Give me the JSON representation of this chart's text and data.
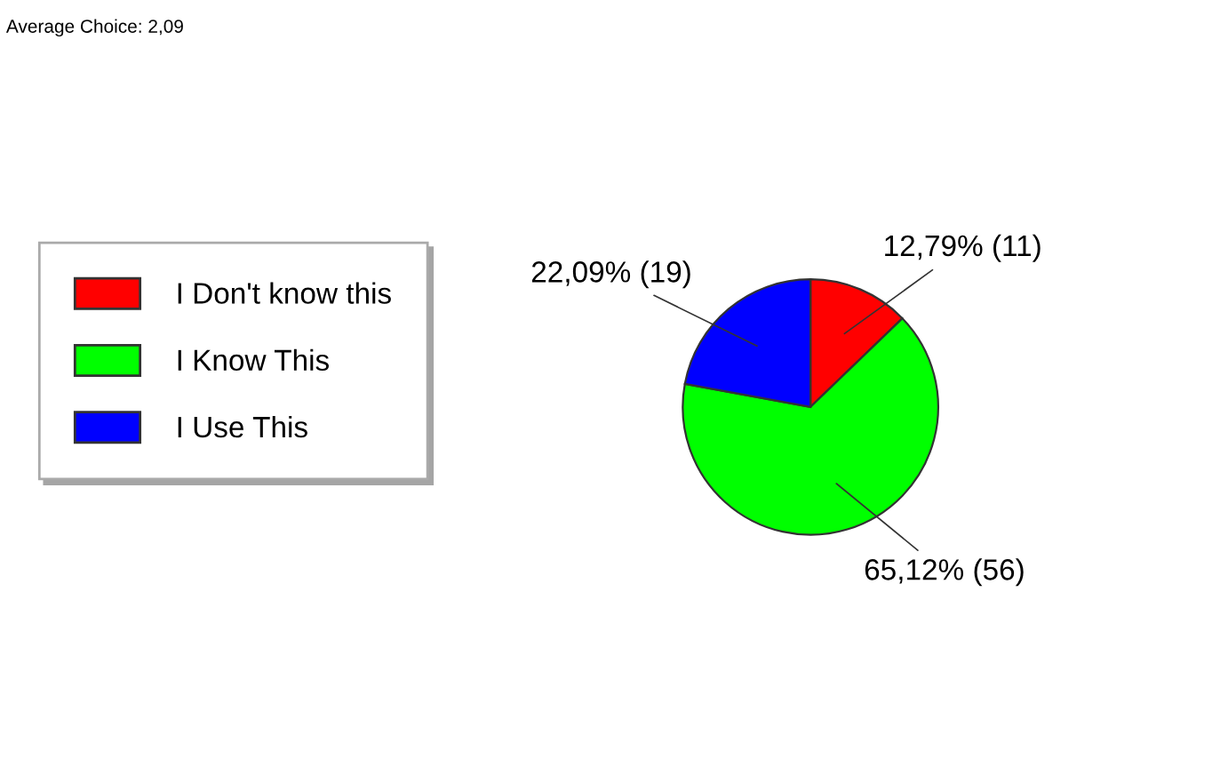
{
  "chart_data": {
    "type": "pie",
    "categories": [
      "I Don't know this",
      "I Know This",
      "I Use This"
    ],
    "values": [
      11,
      56,
      19
    ],
    "colors": [
      "#ff0000",
      "#00ff00",
      "#0000ff"
    ],
    "value_labels": [
      "12,79% (11)",
      "65,12% (56)",
      "22,09% (19)"
    ],
    "annotations": [
      "Average Choice: 2,09"
    ],
    "legend": "left"
  }
}
